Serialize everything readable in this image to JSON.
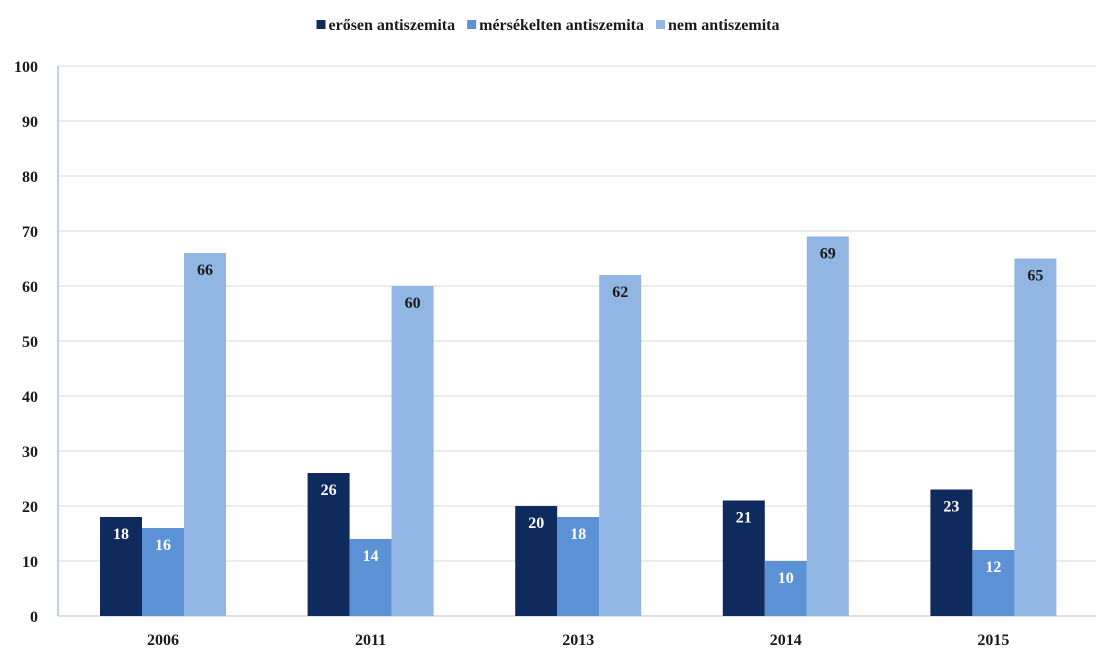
{
  "chart_data": {
    "type": "bar",
    "categories": [
      "2006",
      "2011",
      "2013",
      "2014",
      "2015"
    ],
    "series": [
      {
        "name": "erősen antiszemita",
        "values": [
          18,
          26,
          20,
          21,
          23
        ],
        "color": "#0f2a5c",
        "label_color": "#ffffff"
      },
      {
        "name": "mérsékelten antiszemita",
        "values": [
          16,
          14,
          18,
          10,
          12
        ],
        "color": "#5b92d6",
        "label_color": "#ffffff"
      },
      {
        "name": "nem antiszemita",
        "values": [
          66,
          60,
          62,
          69,
          65
        ],
        "color": "#92b6e4",
        "label_color": "#1a1a1a"
      }
    ],
    "ylim": [
      0,
      100
    ],
    "yticks": [
      "0",
      "10",
      "20",
      "30",
      "40",
      "50",
      "60",
      "70",
      "80",
      "90",
      "100"
    ],
    "grid": true,
    "legend_position": "top-center",
    "title": "",
    "xlabel": "",
    "ylabel": ""
  }
}
